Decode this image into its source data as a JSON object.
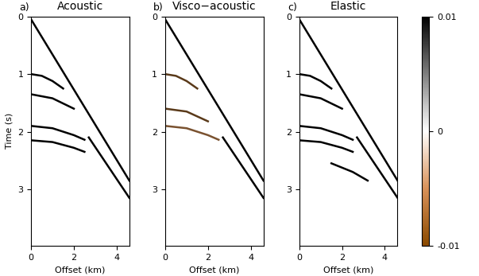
{
  "chart_data": [
    {
      "type": "line",
      "panel": "a)",
      "title": "Acoustic",
      "x_label": "Offset (km)",
      "y_label": "Time (s)",
      "xlim": [
        0,
        4.6
      ],
      "ylim": [
        3.98,
        0
      ],
      "xticks": [
        0,
        2,
        4
      ],
      "yticks": [
        0,
        1,
        2,
        3
      ],
      "series": [
        {
          "color": "#000000",
          "x": [
            0,
            4.6
          ],
          "values": [
            0.05,
            2.85
          ]
        },
        {
          "color": "#000000",
          "x": [
            2.7,
            4.6
          ],
          "values": [
            2.1,
            3.15
          ]
        },
        {
          "color": "#000000",
          "x": [
            0,
            0.5,
            1.0,
            1.5
          ],
          "values": [
            1.0,
            1.03,
            1.12,
            1.25
          ]
        },
        {
          "color": "#000000",
          "x": [
            0,
            1.0,
            2.0
          ],
          "values": [
            1.35,
            1.42,
            1.6
          ]
        },
        {
          "color": "#000000",
          "x": [
            0,
            1.0,
            2.0,
            2.5
          ],
          "values": [
            1.9,
            1.94,
            2.06,
            2.14
          ]
        },
        {
          "color": "#000000",
          "x": [
            0,
            1.0,
            2.0,
            2.5
          ],
          "values": [
            2.15,
            2.18,
            2.28,
            2.35
          ]
        }
      ]
    },
    {
      "type": "line",
      "panel": "b)",
      "title": "Visco−acoustic",
      "x_label": "Offset (km)",
      "xlim": [
        0,
        4.6
      ],
      "ylim": [
        3.98,
        0
      ],
      "xticks": [
        0,
        2,
        4
      ],
      "yticks": [
        0,
        1,
        2,
        3
      ],
      "series": [
        {
          "color": "#000000",
          "x": [
            0,
            4.6
          ],
          "values": [
            0.05,
            2.85
          ]
        },
        {
          "color": "#000000",
          "x": [
            2.7,
            4.6
          ],
          "values": [
            2.1,
            3.15
          ]
        },
        {
          "color": "#5a3a1a",
          "x": [
            0,
            0.5,
            1.0,
            1.5
          ],
          "values": [
            1.0,
            1.03,
            1.12,
            1.25
          ]
        },
        {
          "color": "#5a3a1a",
          "x": [
            0,
            1.0,
            2.0
          ],
          "values": [
            1.6,
            1.65,
            1.82
          ]
        },
        {
          "color": "#7a5230",
          "x": [
            0,
            1.0,
            2.0,
            2.5
          ],
          "values": [
            1.9,
            1.94,
            2.06,
            2.14
          ]
        }
      ]
    },
    {
      "type": "line",
      "panel": "c)",
      "title": "Elastic",
      "x_label": "Offset (km)",
      "xlim": [
        0,
        4.6
      ],
      "ylim": [
        3.98,
        0
      ],
      "xticks": [
        0,
        2,
        4
      ],
      "yticks": [
        0,
        1,
        2,
        3
      ],
      "series": [
        {
          "color": "#000000",
          "x": [
            0,
            4.6
          ],
          "values": [
            0.05,
            2.85
          ]
        },
        {
          "color": "#000000",
          "x": [
            2.7,
            4.6
          ],
          "values": [
            2.1,
            3.15
          ]
        },
        {
          "color": "#000000",
          "x": [
            0,
            0.5,
            1.0,
            1.5
          ],
          "values": [
            1.0,
            1.03,
            1.12,
            1.25
          ]
        },
        {
          "color": "#000000",
          "x": [
            0,
            1.0,
            2.0
          ],
          "values": [
            1.35,
            1.42,
            1.6
          ]
        },
        {
          "color": "#000000",
          "x": [
            0,
            1.0,
            2.0,
            2.5
          ],
          "values": [
            1.9,
            1.94,
            2.06,
            2.14
          ]
        },
        {
          "color": "#000000",
          "x": [
            0,
            1.0,
            2.0,
            2.5
          ],
          "values": [
            2.15,
            2.18,
            2.28,
            2.35
          ]
        },
        {
          "color": "#000000",
          "x": [
            1.5,
            2.5,
            3.2
          ],
          "values": [
            2.55,
            2.7,
            2.85
          ]
        }
      ],
      "colorbar": {
        "range": [
          -0.01,
          0.01
        ],
        "ticks": [
          0.01,
          0,
          -0.01
        ]
      }
    }
  ]
}
